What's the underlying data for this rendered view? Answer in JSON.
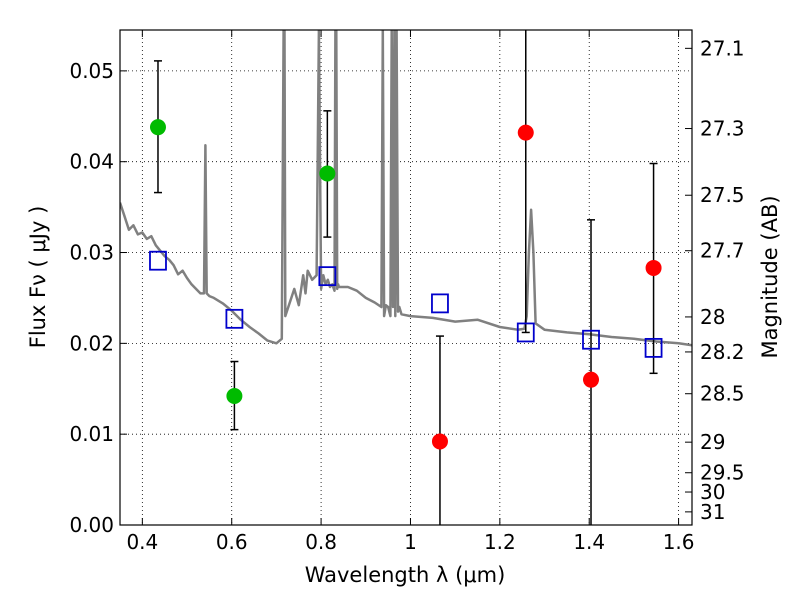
{
  "chart_data": {
    "type": "scatter",
    "xlabel": "Wavelength  λ (μm)",
    "ylabel": "Flux  Fν  ( μJy )",
    "y2label": "Magnitude (AB)",
    "xlim": [
      0.35,
      1.63
    ],
    "ylim": [
      0.0,
      0.0545
    ],
    "xticks": [
      0.4,
      0.6,
      0.8,
      1.0,
      1.2,
      1.4,
      1.6
    ],
    "xtick_labels": [
      "0.4",
      "0.6",
      "0.8",
      "1",
      "1.2",
      "1.4",
      "1.6"
    ],
    "yticks": [
      0.0,
      0.01,
      0.02,
      0.03,
      0.04,
      0.05
    ],
    "ytick_labels": [
      "0.00",
      "0.01",
      "0.02",
      "0.03",
      "0.04",
      "0.05"
    ],
    "y2_ticks": [
      27.1,
      27.3,
      27.5,
      27.7,
      28,
      28.2,
      28.5,
      29,
      29.5,
      30,
      31
    ],
    "y2_tick_labels": [
      "27.1",
      "27.3",
      "27.5",
      "27.7",
      "28",
      "28.2",
      "28.5",
      "29",
      "29.5",
      "30",
      "31"
    ],
    "grid": true,
    "colors": {
      "green": "#00bb00",
      "red": "#ff0000",
      "model": "#808080",
      "box": "#0000cc",
      "err": "#000000"
    },
    "series": [
      {
        "kind": "points_with_errorbars",
        "color": "green",
        "points": [
          {
            "x": 0.435,
            "y": 0.0438,
            "ylo": 0.0366,
            "yhi": 0.0511
          },
          {
            "x": 0.606,
            "y": 0.0142,
            "ylo": 0.0105,
            "yhi": 0.018
          },
          {
            "x": 0.814,
            "y": 0.0387,
            "ylo": 0.0317,
            "yhi": 0.0456
          }
        ]
      },
      {
        "kind": "points_with_errorbars",
        "color": "red",
        "points": [
          {
            "x": 1.066,
            "y": 0.0092,
            "ylo": 0.0,
            "yhi": 0.0208
          },
          {
            "x": 1.258,
            "y": 0.0432,
            "ylo": 0.0212,
            "yhi": 0.0545
          },
          {
            "x": 1.404,
            "y": 0.016,
            "ylo": 0.0,
            "yhi": 0.0336
          },
          {
            "x": 1.544,
            "y": 0.0283,
            "ylo": 0.0167,
            "yhi": 0.0398
          }
        ]
      },
      {
        "kind": "open_squares",
        "color": "box",
        "points": [
          {
            "x": 0.435,
            "y": 0.0291
          },
          {
            "x": 0.606,
            "y": 0.0227
          },
          {
            "x": 0.814,
            "y": 0.0274
          },
          {
            "x": 1.066,
            "y": 0.0244
          },
          {
            "x": 1.258,
            "y": 0.0212
          },
          {
            "x": 1.404,
            "y": 0.0204
          },
          {
            "x": 1.544,
            "y": 0.0195
          }
        ]
      },
      {
        "kind": "model_spectrum",
        "color": "model",
        "x": [
          0.35,
          0.36,
          0.37,
          0.38,
          0.39,
          0.4,
          0.41,
          0.42,
          0.43,
          0.44,
          0.45,
          0.46,
          0.47,
          0.48,
          0.49,
          0.5,
          0.51,
          0.52,
          0.53,
          0.538,
          0.541,
          0.544,
          0.55,
          0.56,
          0.58,
          0.6,
          0.62,
          0.64,
          0.66,
          0.68,
          0.7,
          0.712,
          0.716,
          0.718,
          0.72,
          0.73,
          0.74,
          0.75,
          0.76,
          0.765,
          0.77,
          0.78,
          0.79,
          0.795,
          0.8,
          0.805,
          0.81,
          0.815,
          0.82,
          0.825,
          0.83,
          0.832,
          0.834,
          0.836,
          0.838,
          0.84,
          0.86,
          0.88,
          0.9,
          0.92,
          0.935,
          0.938,
          0.941,
          0.945,
          0.95,
          0.955,
          0.958,
          0.961,
          0.964,
          0.966,
          0.969,
          0.972,
          0.975,
          0.98,
          1.0,
          1.05,
          1.1,
          1.15,
          1.2,
          1.24,
          1.255,
          1.26,
          1.265,
          1.27,
          1.275,
          1.28,
          1.3,
          1.35,
          1.4,
          1.45,
          1.5,
          1.55,
          1.6,
          1.63
        ],
        "y": [
          0.0355,
          0.034,
          0.0325,
          0.033,
          0.032,
          0.0322,
          0.0315,
          0.0318,
          0.0308,
          0.0302,
          0.0296,
          0.0292,
          0.0286,
          0.0276,
          0.028,
          0.0272,
          0.0265,
          0.026,
          0.0255,
          0.0255,
          0.0418,
          0.0255,
          0.0252,
          0.025,
          0.0244,
          0.0236,
          0.0226,
          0.0218,
          0.0211,
          0.0203,
          0.02,
          0.0205,
          0.0545,
          0.0545,
          0.023,
          0.0245,
          0.026,
          0.0242,
          0.0275,
          0.0255,
          0.028,
          0.027,
          0.0275,
          0.0545,
          0.026,
          0.0275,
          0.0265,
          0.027,
          0.0262,
          0.0265,
          0.0258,
          0.0545,
          0.0545,
          0.026,
          0.0265,
          0.0262,
          0.0262,
          0.0258,
          0.025,
          0.0245,
          0.024,
          0.0545,
          0.023,
          0.0242,
          0.024,
          0.023,
          0.0545,
          0.024,
          0.0545,
          0.023,
          0.0545,
          0.0235,
          0.024,
          0.0232,
          0.023,
          0.0228,
          0.0224,
          0.0226,
          0.0218,
          0.0215,
          0.0216,
          0.023,
          0.03,
          0.0347,
          0.03,
          0.0222,
          0.0215,
          0.0212,
          0.021,
          0.0207,
          0.0205,
          0.0202,
          0.02,
          0.0198
        ]
      }
    ]
  }
}
